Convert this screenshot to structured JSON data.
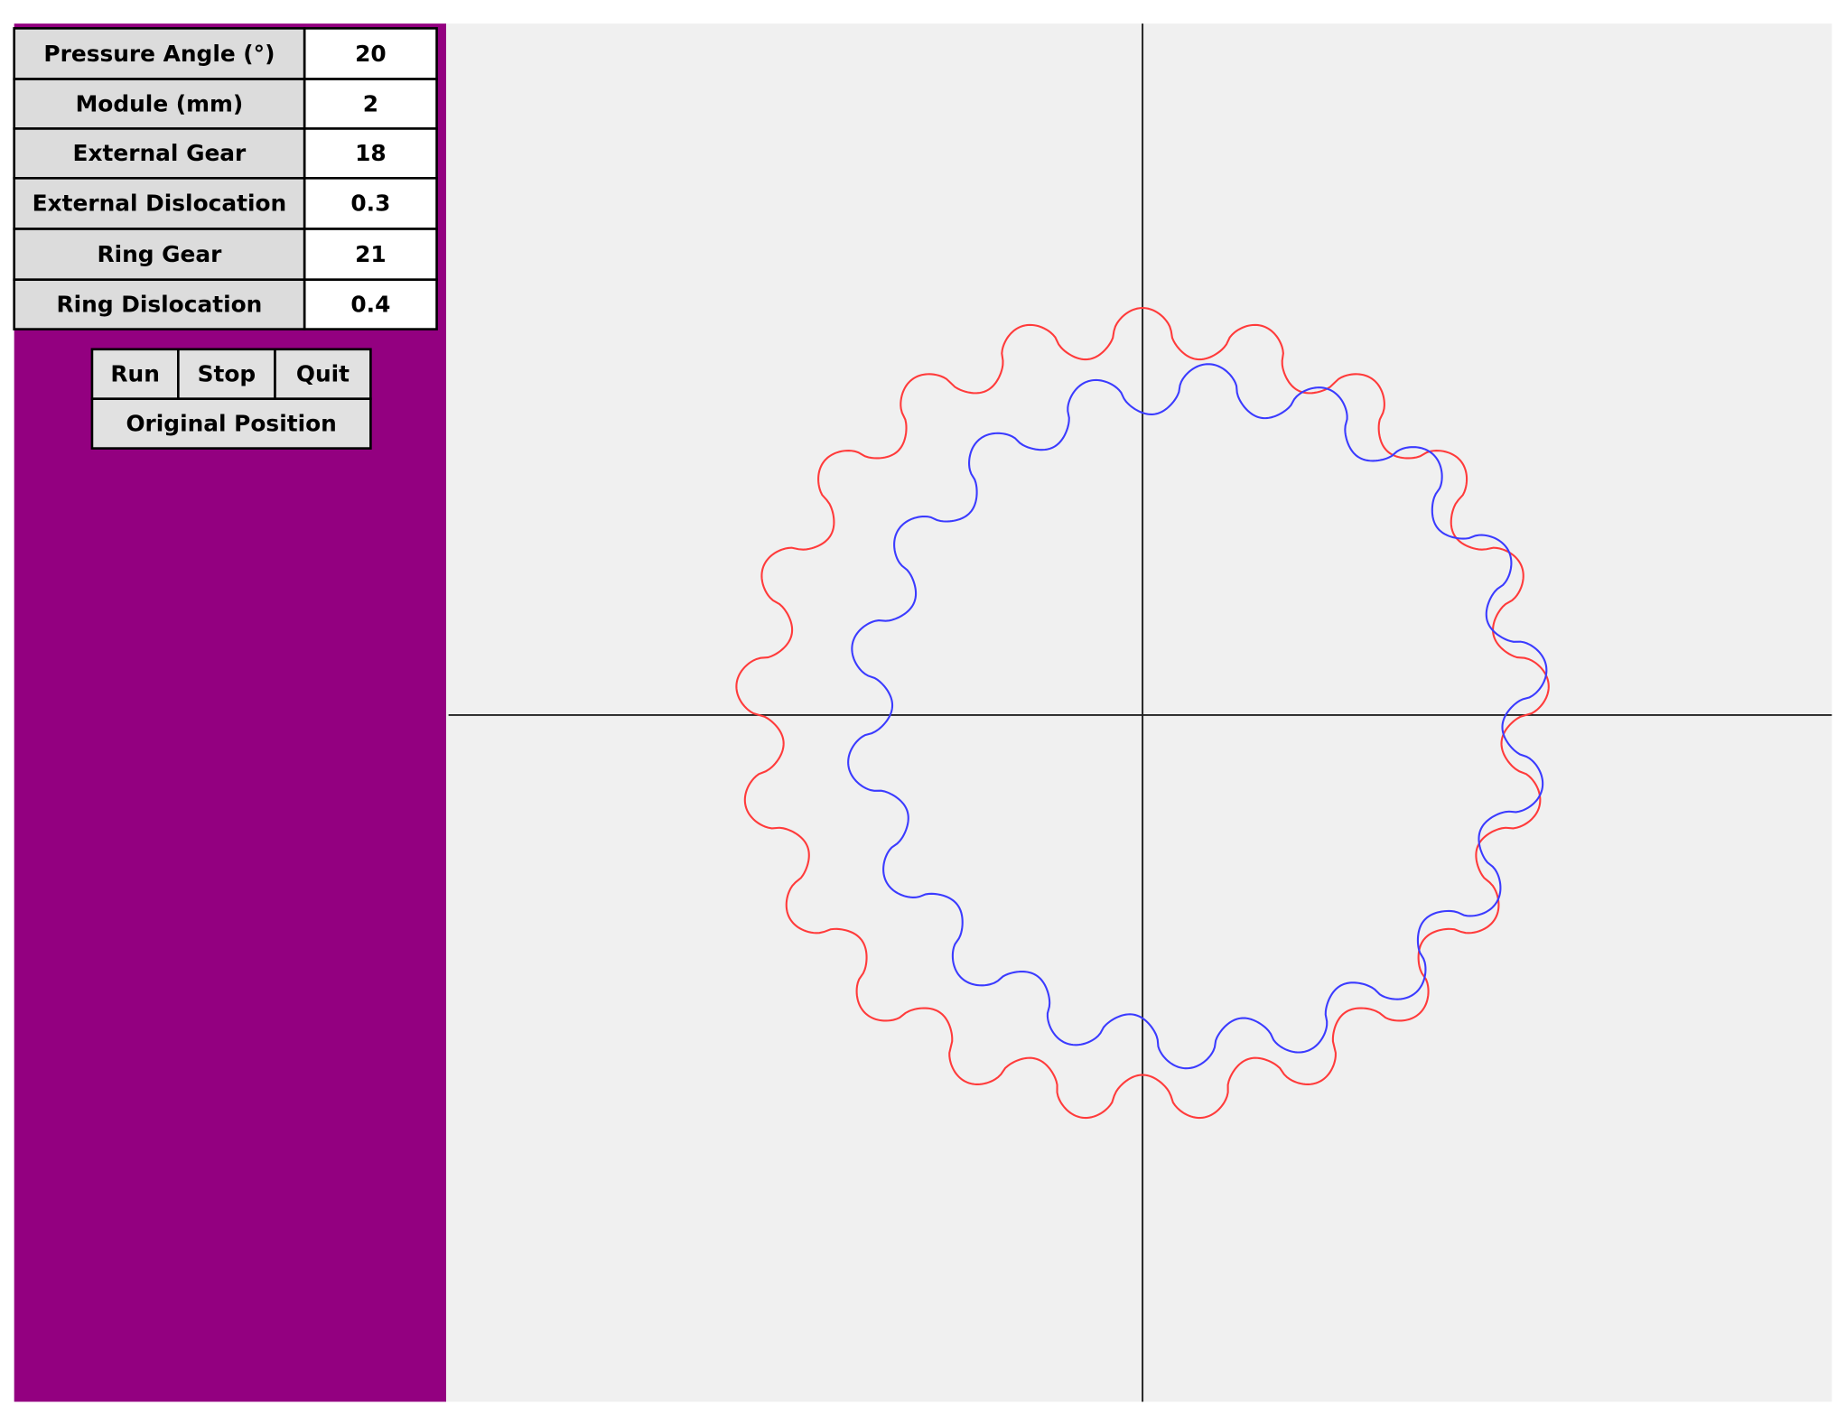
{
  "parameters": [
    {
      "label": "Pressure Angle (°)",
      "value": 20
    },
    {
      "label": "Module (mm)",
      "value": 2
    },
    {
      "label": "External Gear",
      "value": 18
    },
    {
      "label": "External Dislocation",
      "value": 0.3
    },
    {
      "label": "Ring Gear",
      "value": 21
    },
    {
      "label": "Ring Dislocation",
      "value": 0.4
    }
  ],
  "buttons": [
    "Run",
    "Stop",
    "Quit",
    "Original Position"
  ]
}
